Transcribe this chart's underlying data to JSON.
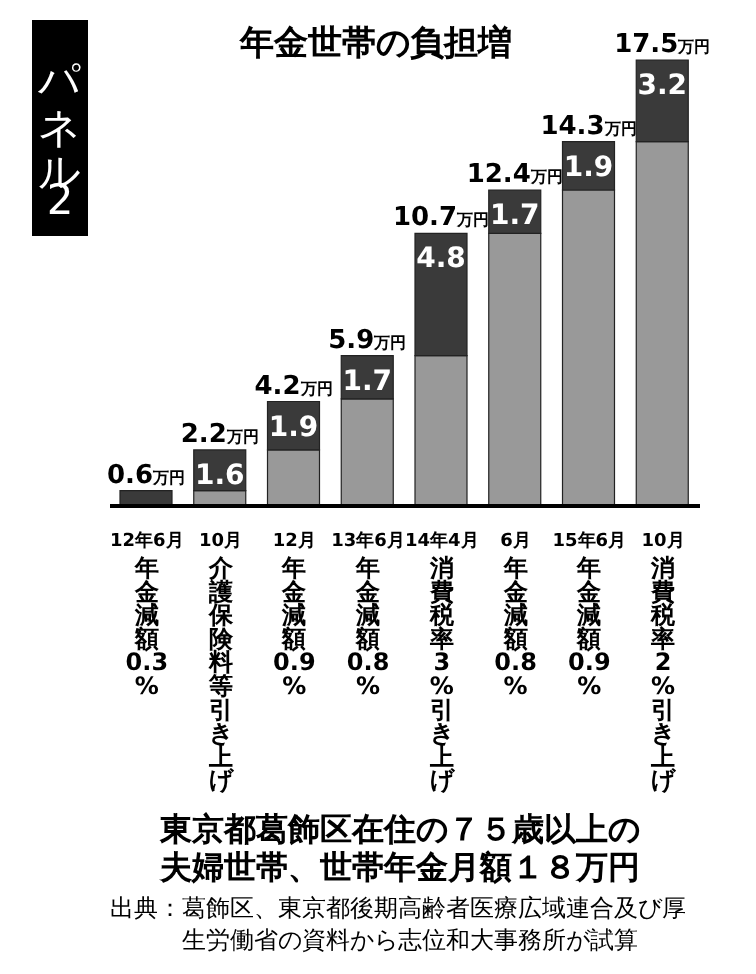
{
  "chart_data": {
    "type": "bar",
    "title": "年金世帯の負担増",
    "subtitle": "東京都葛飾区在住の７５歳以上の夫婦世帯、世帯年金月額１８万円",
    "annotations": [
      "パネル2",
      "出典：葛飾区、東京都後期高齢者医療広域連合及び厚生労働省の資料から志位和大事務所が試算"
    ],
    "categories": [
      "12年6月年金減額0.3%",
      "10月介護保険料等引き上げ",
      "12月年金減額0.9%",
      "13年6月年金減額0.8%",
      "14年4月消費税率3%引き上げ",
      "6月年金減額0.8%",
      "15年6月年金減額0.9%",
      "10月消費税率2%引き上げ"
    ],
    "stacked": true,
    "series": [
      {
        "color": "#999999",
        "values": [
          0,
          0.6,
          2.2,
          4.2,
          5.9,
          10.7,
          12.4,
          14.3
        ]
      },
      {
        "color": "#3a3a3a",
        "values": [
          0.6,
          1.6,
          1.9,
          1.7,
          4.8,
          1.7,
          1.9,
          3.2
        ],
        "value_labels": [
          null,
          "1.6",
          "1.9",
          "1.7",
          "4.8",
          "1.7",
          "1.9",
          "3.2"
        ]
      }
    ],
    "totals": [
      "0.6万円",
      "2.2万円",
      "4.2万円",
      "5.9万円",
      "10.7万円",
      "12.4万円",
      "14.3万円",
      "17.5万円"
    ]
  }
}
